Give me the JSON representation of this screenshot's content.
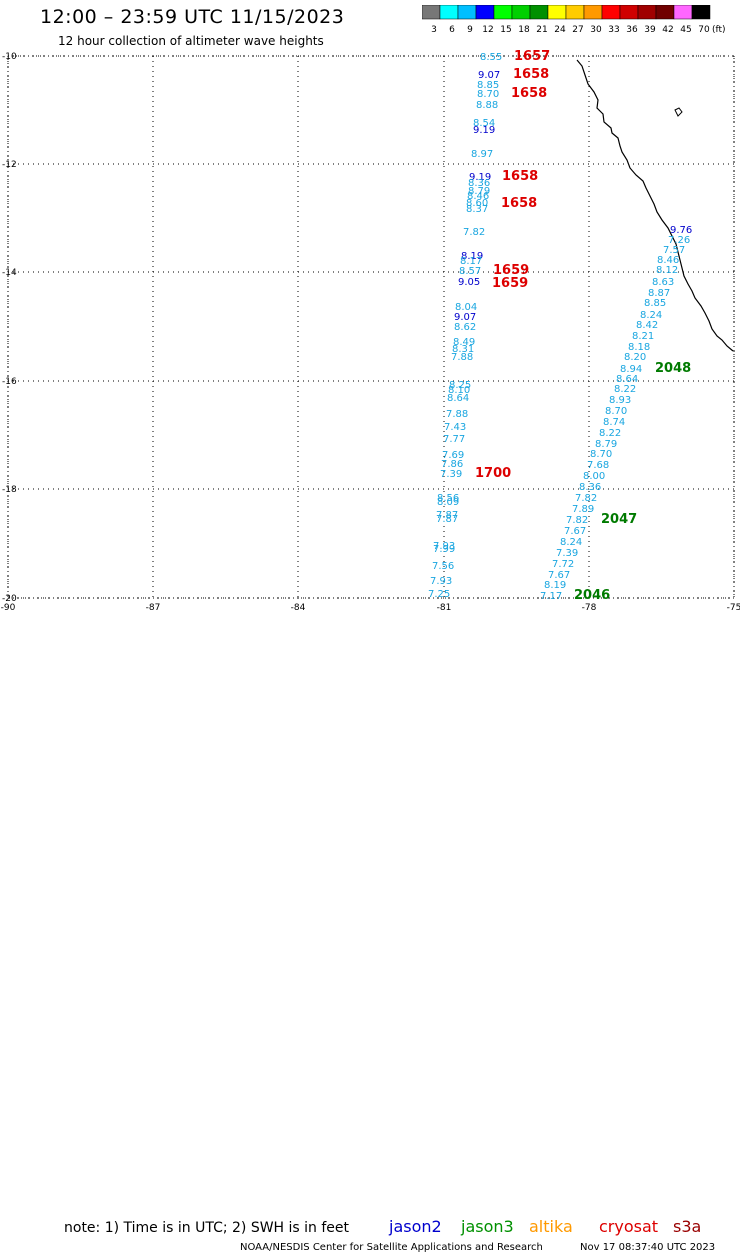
{
  "header": {
    "title": "12:00 – 23:59 UTC 11/15/2023",
    "subtitle": "12 hour collection of altimeter wave heights"
  },
  "legend": {
    "unit_label": "(ft)",
    "bins": [
      {
        "label": "3",
        "color": "#777777"
      },
      {
        "label": "6",
        "color": "#00ffff"
      },
      {
        "label": "9",
        "color": "#00bfff"
      },
      {
        "label": "12",
        "color": "#0000ff"
      },
      {
        "label": "15",
        "color": "#00ff00"
      },
      {
        "label": "18",
        "color": "#00d000"
      },
      {
        "label": "21",
        "color": "#009000"
      },
      {
        "label": "24",
        "color": "#ffff00"
      },
      {
        "label": "27",
        "color": "#ffcc00"
      },
      {
        "label": "30",
        "color": "#ff9900"
      },
      {
        "label": "33",
        "color": "#ff0000"
      },
      {
        "label": "36",
        "color": "#d00000"
      },
      {
        "label": "39",
        "color": "#a00000"
      },
      {
        "label": "42",
        "color": "#700000"
      },
      {
        "label": "45",
        "color": "#ff66ff"
      },
      {
        "label": "70",
        "color": "#000000"
      }
    ]
  },
  "map": {
    "lat_labels": [
      "-10",
      "-12",
      "-14",
      "-16",
      "-18",
      "-20"
    ],
    "lon_labels": [
      "-90",
      "-87",
      "-84",
      "-81",
      "-78",
      "-75"
    ],
    "colors": {
      "swh_light": "#1aa6e0",
      "swh_dark": "#0000cc",
      "time_red": "#dd0000",
      "time_green": "#007a00",
      "coast": "#000000"
    },
    "track_west": [
      {
        "t": "8.55",
        "c": "light"
      },
      {
        "t": "9.07",
        "c": "dark"
      },
      {
        "t": "8.85",
        "c": "light"
      },
      {
        "t": "8.70",
        "c": "light"
      },
      {
        "t": "8.88",
        "c": "light"
      },
      {
        "t": "8.54",
        "c": "light"
      },
      {
        "t": "9.19",
        "c": "dark"
      },
      {
        "t": "8.97",
        "c": "light"
      },
      {
        "t": "9.19",
        "c": "dark"
      },
      {
        "t": "8.36",
        "c": "light"
      },
      {
        "t": "8.79",
        "c": "light"
      },
      {
        "t": "8.46",
        "c": "light"
      },
      {
        "t": "8.60",
        "c": "light"
      },
      {
        "t": "8.37",
        "c": "light"
      },
      {
        "t": "7.82",
        "c": "light"
      },
      {
        "t": "8.19",
        "c": "dark"
      },
      {
        "t": "8.17",
        "c": "light"
      },
      {
        "t": "8.57",
        "c": "light"
      },
      {
        "t": "9.05",
        "c": "dark"
      },
      {
        "t": "8.04",
        "c": "light"
      },
      {
        "t": "9.07",
        "c": "dark"
      },
      {
        "t": "8.62",
        "c": "light"
      },
      {
        "t": "8.49",
        "c": "light"
      },
      {
        "t": "8.31",
        "c": "light"
      },
      {
        "t": "7.88",
        "c": "light"
      },
      {
        "t": "8.25",
        "c": "light"
      },
      {
        "t": "8.10",
        "c": "light"
      },
      {
        "t": "8.64",
        "c": "light"
      },
      {
        "t": "7.88",
        "c": "light"
      },
      {
        "t": "7.43",
        "c": "light"
      },
      {
        "t": "7.77",
        "c": "light"
      },
      {
        "t": "7.69",
        "c": "light"
      },
      {
        "t": "7.86",
        "c": "light"
      },
      {
        "t": "7.39",
        "c": "light"
      },
      {
        "t": "8.56",
        "c": "light"
      },
      {
        "t": "8.09",
        "c": "light"
      },
      {
        "t": "7.87",
        "c": "light"
      },
      {
        "t": "7.87",
        "c": "light"
      },
      {
        "t": "7.93",
        "c": "light"
      },
      {
        "t": "7.99",
        "c": "light"
      },
      {
        "t": "7.56",
        "c": "light"
      },
      {
        "t": "7.93",
        "c": "light"
      },
      {
        "t": "7.25",
        "c": "light"
      }
    ],
    "track_east": [
      {
        "t": "9.76",
        "c": "dark"
      },
      {
        "t": "7.26",
        "c": "light"
      },
      {
        "t": "7.57",
        "c": "light"
      },
      {
        "t": "8.46",
        "c": "light"
      },
      {
        "t": "8.12",
        "c": "light"
      },
      {
        "t": "8.63",
        "c": "light"
      },
      {
        "t": "8.87",
        "c": "light"
      },
      {
        "t": "8.85",
        "c": "light"
      },
      {
        "t": "8.24",
        "c": "light"
      },
      {
        "t": "8.42",
        "c": "light"
      },
      {
        "t": "8.21",
        "c": "light"
      },
      {
        "t": "8.18",
        "c": "light"
      },
      {
        "t": "8.20",
        "c": "light"
      },
      {
        "t": "8.94",
        "c": "light"
      },
      {
        "t": "8.64",
        "c": "light"
      },
      {
        "t": "8.22",
        "c": "light"
      },
      {
        "t": "8.93",
        "c": "light"
      },
      {
        "t": "8.70",
        "c": "light"
      },
      {
        "t": "8.74",
        "c": "light"
      },
      {
        "t": "8.22",
        "c": "light"
      },
      {
        "t": "8.79",
        "c": "light"
      },
      {
        "t": "8.70",
        "c": "light"
      },
      {
        "t": "7.68",
        "c": "light"
      },
      {
        "t": "8.00",
        "c": "light"
      },
      {
        "t": "8.36",
        "c": "light"
      },
      {
        "t": "7.82",
        "c": "light"
      },
      {
        "t": "7.89",
        "c": "light"
      },
      {
        "t": "7.82",
        "c": "light"
      },
      {
        "t": "7.67",
        "c": "light"
      },
      {
        "t": "8.24",
        "c": "light"
      },
      {
        "t": "7.39",
        "c": "light"
      },
      {
        "t": "7.72",
        "c": "light"
      },
      {
        "t": "7.67",
        "c": "light"
      },
      {
        "t": "8.19",
        "c": "light"
      },
      {
        "t": "7.17",
        "c": "light"
      }
    ],
    "time_labels": [
      "1657",
      "1658",
      "1658",
      "1658",
      "1658",
      "1659",
      "1659",
      "1700",
      "2048",
      "2047",
      "2046"
    ]
  },
  "footer": {
    "note": "note: 1) Time is in UTC; 2) SWH is in feet",
    "satellites": [
      {
        "name": "jason2",
        "color": "#0000cc"
      },
      {
        "name": "jason3",
        "color": "#009000"
      },
      {
        "name": "altika",
        "color": "#ff9900"
      },
      {
        "name": "cryosat",
        "color": "#dd0000"
      },
      {
        "name": "s3a",
        "color": "#990000"
      }
    ],
    "credit": "NOAA/NESDIS Center for Satellite Applications and Research",
    "timestamp": "Nov 17 08:37:40 UTC 2023"
  }
}
